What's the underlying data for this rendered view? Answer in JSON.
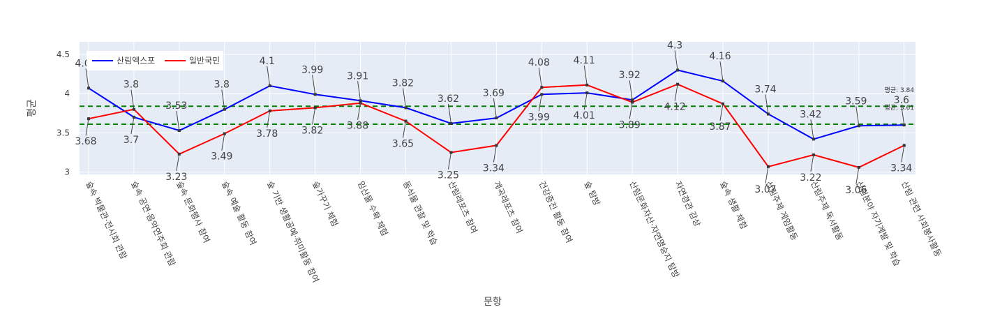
{
  "chart_data": {
    "type": "line",
    "xlabel": "문항",
    "ylabel": "평균",
    "ylim": [
      2.97,
      4.66
    ],
    "yticks": [
      3,
      3.5,
      4,
      4.5
    ],
    "categories": [
      "숲속 박물관·전시회 관람",
      "숲속 공연·음악연주회 관람",
      "숲속 문화행사 참여",
      "숲속 예술 활동 참여",
      "숲 기반 생활공예·취미활동 참여",
      "숲가꾸기 체험",
      "임산물 수확 체험",
      "동식물 관찰 및 학습",
      "산림레포츠 참여",
      "계곡레포츠 참여",
      "건강증진 활동 참여",
      "숲 탐방",
      "산림문화자산·자연명승지 탐방",
      "자연경관 감상",
      "숲속 생활 체험",
      "산림주제 게임활동",
      "산림주제 독서활동",
      "산림분야 자기계발 및 학습",
      "산림 관련 사회봉사활동"
    ],
    "series": [
      {
        "name": "산림엑스포",
        "color": "#0000ff",
        "values": [
          4.07,
          3.7,
          3.53,
          3.8,
          4.1,
          3.99,
          3.91,
          3.82,
          3.62,
          3.69,
          3.99,
          4.01,
          3.92,
          4.3,
          4.16,
          3.74,
          3.42,
          3.59,
          3.6
        ],
        "labels": [
          "4.07",
          "3.7",
          "3.53",
          "3.8",
          "4.1",
          "3.99",
          "3.91",
          "3.82",
          "3.62",
          "3.69",
          "3.99",
          "4.01",
          "3.92",
          "4.3",
          "4.16",
          "3.74",
          "3.42",
          "3.59",
          "3.6"
        ]
      },
      {
        "name": "일반국민",
        "color": "#ff0000",
        "values": [
          3.68,
          3.8,
          3.23,
          3.49,
          3.78,
          3.82,
          3.88,
          3.65,
          3.25,
          3.34,
          4.08,
          4.11,
          3.89,
          4.12,
          3.87,
          3.07,
          3.22,
          3.06,
          3.34
        ],
        "labels": [
          "3.68",
          "3.8",
          "3.23",
          "3.49",
          "3.78",
          "3.82",
          "3.88",
          "3.65",
          "3.25",
          "3.34",
          "4.08",
          "4.11",
          "3.89",
          "4.12",
          "3.87",
          "3.07",
          "3.22",
          "3.06",
          "3.34"
        ]
      }
    ],
    "reference_lines": [
      {
        "value": 3.84,
        "label": "평균: 3.84",
        "color": "#008000"
      },
      {
        "value": 3.61,
        "label": "평균: 3.61",
        "color": "#008000"
      }
    ],
    "legend_position": "top-left",
    "grid": true,
    "colors": {
      "plot_bg": "#e5ecf6",
      "grid": "#ffffff",
      "marker": "#333333"
    }
  }
}
